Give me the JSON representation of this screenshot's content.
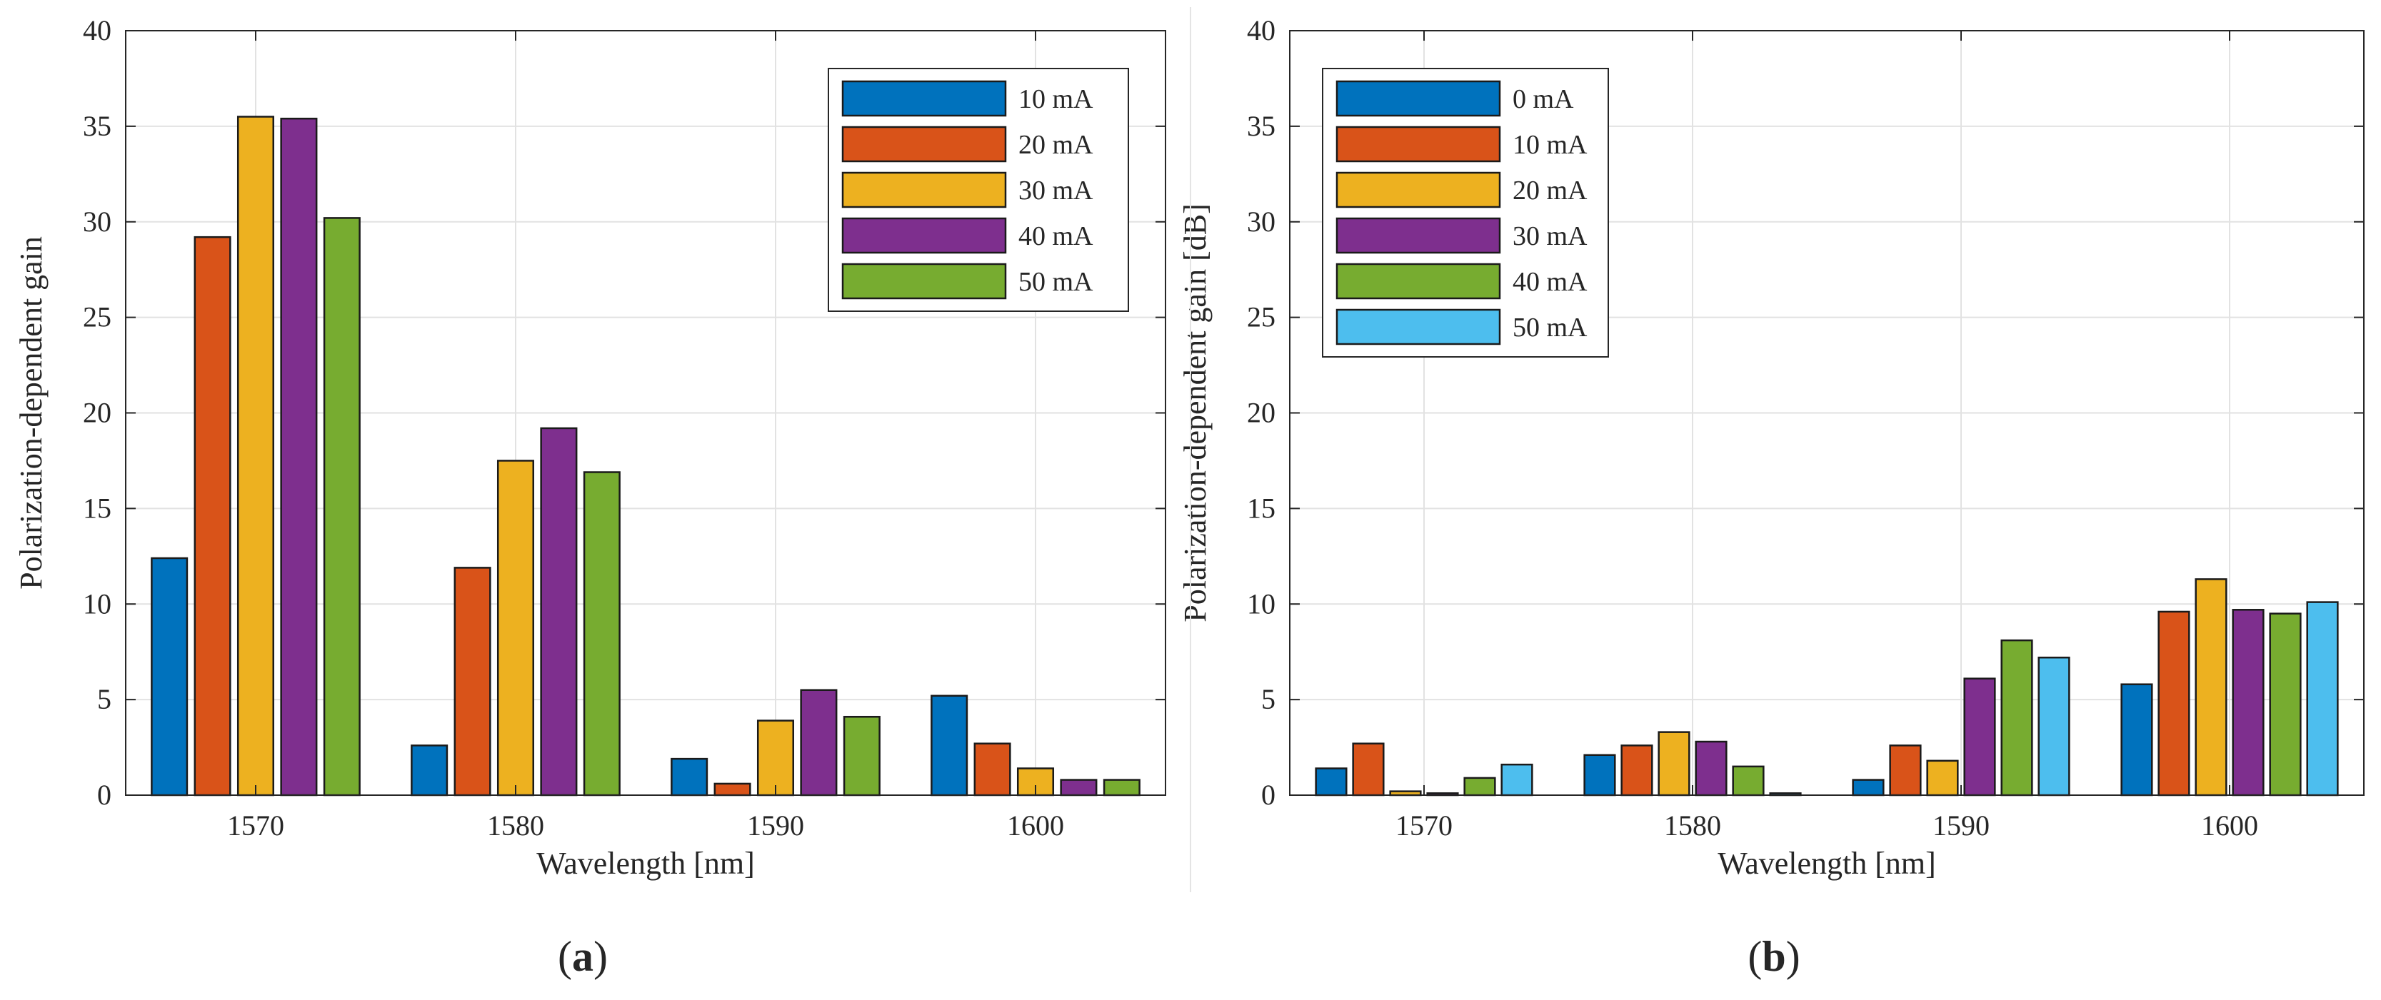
{
  "chart_data": [
    {
      "type": "bar",
      "panel_caption_open": "(",
      "panel_caption_letter": "a",
      "panel_caption_close": ")",
      "xlabel": "Wavelength [nm]",
      "ylabel": "Polarization-dependent gain",
      "ylim": [
        0,
        40
      ],
      "yticks": [
        "0",
        "5",
        "10",
        "15",
        "20",
        "25",
        "30",
        "35",
        "40"
      ],
      "categories": [
        "1570",
        "1580",
        "1590",
        "1600"
      ],
      "grid": true,
      "legend_position": "top-right",
      "series": [
        {
          "name": "10 mA",
          "color": "#0072BD",
          "values": [
            12.4,
            2.6,
            1.9,
            5.2
          ]
        },
        {
          "name": "20 mA",
          "color": "#D95319",
          "values": [
            29.2,
            11.9,
            0.6,
            2.7
          ]
        },
        {
          "name": "30 mA",
          "color": "#EDB120",
          "values": [
            35.5,
            17.5,
            3.9,
            1.4
          ]
        },
        {
          "name": "40 mA",
          "color": "#7E2F8E",
          "values": [
            35.4,
            19.2,
            5.5,
            0.8
          ]
        },
        {
          "name": "50 mA",
          "color": "#77AC30",
          "values": [
            30.2,
            16.9,
            4.1,
            0.8
          ]
        }
      ]
    },
    {
      "type": "bar",
      "panel_caption_open": "(",
      "panel_caption_letter": "b",
      "panel_caption_close": ")",
      "xlabel": "Wavelength [nm]",
      "ylabel": "Polarization-dependent gain [dB]",
      "ylim": [
        0,
        40
      ],
      "yticks": [
        "0",
        "5",
        "10",
        "15",
        "20",
        "25",
        "30",
        "35",
        "40"
      ],
      "categories": [
        "1570",
        "1580",
        "1590",
        "1600"
      ],
      "grid": true,
      "legend_position": "top-left",
      "series": [
        {
          "name": "0 mA",
          "color": "#0072BD",
          "values": [
            1.4,
            2.1,
            0.8,
            5.8
          ]
        },
        {
          "name": "10 mA",
          "color": "#D95319",
          "values": [
            2.7,
            2.6,
            2.6,
            9.6
          ]
        },
        {
          "name": "20 mA",
          "color": "#EDB120",
          "values": [
            0.2,
            3.3,
            1.8,
            11.3
          ]
        },
        {
          "name": "30 mA",
          "color": "#7E2F8E",
          "values": [
            0.1,
            2.8,
            6.1,
            9.7
          ]
        },
        {
          "name": "40 mA",
          "color": "#77AC30",
          "values": [
            0.9,
            1.5,
            8.1,
            9.5
          ]
        },
        {
          "name": "50 mA",
          "color": "#4DBEEE",
          "values": [
            1.6,
            0.1,
            7.2,
            10.1
          ]
        }
      ]
    }
  ]
}
